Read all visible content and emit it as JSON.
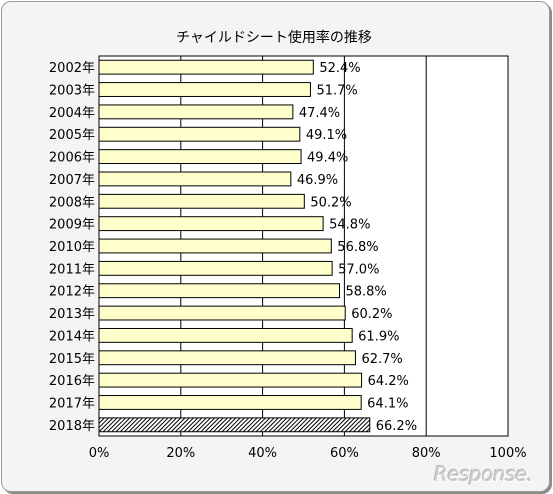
{
  "chart_data": {
    "type": "bar",
    "orientation": "horizontal",
    "title": "チャイルドシート使用率の推移",
    "categories": [
      "2002年",
      "2003年",
      "2004年",
      "2005年",
      "2006年",
      "2007年",
      "2008年",
      "2009年",
      "2010年",
      "2011年",
      "2012年",
      "2013年",
      "2014年",
      "2015年",
      "2016年",
      "2017年",
      "2018年"
    ],
    "values": [
      52.4,
      51.7,
      47.4,
      49.1,
      49.4,
      46.9,
      50.2,
      54.8,
      56.8,
      57.0,
      58.8,
      60.2,
      61.9,
      62.7,
      64.2,
      64.1,
      66.2
    ],
    "value_labels": [
      "52.4%",
      "51.7%",
      "47.4%",
      "49.1%",
      "49.4%",
      "46.9%",
      "50.2%",
      "54.8%",
      "56.8%",
      "57.0%",
      "58.8%",
      "60.2%",
      "61.9%",
      "62.7%",
      "64.2%",
      "64.1%",
      "66.2%"
    ],
    "xlim": [
      0,
      100
    ],
    "xticks": [
      "0%",
      "20%",
      "40%",
      "60%",
      "80%",
      "100%"
    ],
    "grid": "vertical",
    "legend": "none",
    "highlight_category": "2018年"
  },
  "colors": {
    "bar_fill": "#ffffcc",
    "bar_stroke": "#000000",
    "highlight_hatch": "#000000",
    "plot_background": "#ffffff",
    "frame_background": "#f4f4f4"
  },
  "watermark": "Response."
}
